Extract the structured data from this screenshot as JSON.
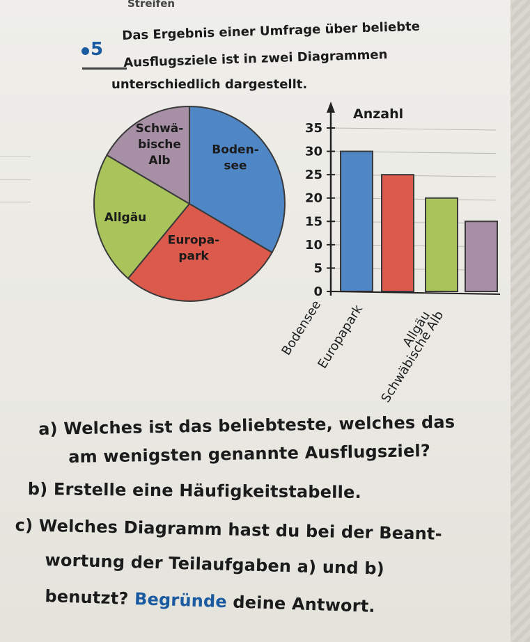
{
  "header": {
    "fragment": "Streifen"
  },
  "task": {
    "number": "5",
    "intro_lines": [
      "Das Ergebnis einer Umfrage über beliebte",
      "Ausflugsziele ist in zwei Diagrammen",
      "unterschiedlich dargestellt."
    ]
  },
  "chart_data": [
    {
      "type": "pie",
      "labels": [
        "Bodensee",
        "Europapark",
        "Allgäu",
        "Schwäbische Alb"
      ],
      "slice_labels": [
        [
          "Boden-",
          "see"
        ],
        [
          "Europa-",
          "park"
        ],
        [
          "Allgäu"
        ],
        [
          "Schwä-",
          "bische",
          "Alb"
        ]
      ],
      "values": [
        30,
        25,
        20,
        15
      ],
      "colors": [
        "#4f86c6",
        "#dc5a4c",
        "#a8c45a",
        "#a78fa5"
      ]
    },
    {
      "type": "bar",
      "categories": [
        "Bodensee",
        "Europapark",
        "Allgäu",
        "Schwäbische Alb"
      ],
      "values": [
        30,
        25,
        20,
        15
      ],
      "colors": [
        "#4f86c6",
        "#dc5a4c",
        "#a8c45a",
        "#a78fa5"
      ],
      "ylabel": "Anzahl",
      "ylim": [
        0,
        35
      ],
      "yticks": [
        "0",
        "5",
        "10",
        "15",
        "20",
        "25",
        "30",
        "35"
      ]
    }
  ],
  "questions": {
    "a_lines": [
      "a) Welches ist das beliebteste, welches das",
      "am wenigsten genannte Ausflugsziel?"
    ],
    "b": "b) Erstelle eine Häufigkeitstabelle.",
    "c_lines": [
      "c) Welches Diagramm hast du bei der Beant-",
      "wortung der Teilaufgaben a) und b)"
    ],
    "c_last_prefix": "benutzt?",
    "c_last_emph": "Begründe",
    "c_last_suffix": "deine Antwort."
  }
}
